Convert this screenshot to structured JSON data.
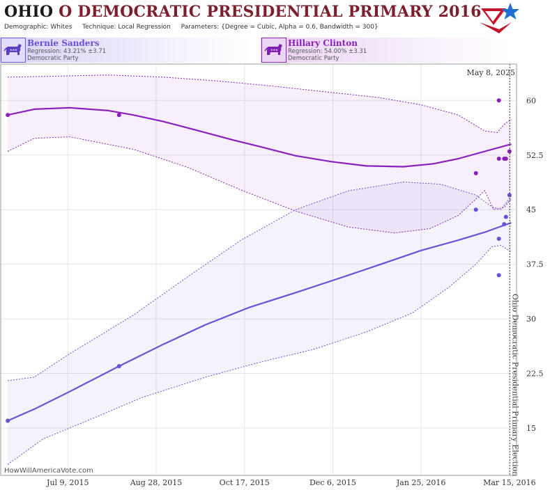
{
  "header": {
    "state": "OHIO",
    "title_rest": " O DEMOCRATIC PRESIDENTIAL PRIMARY 2016",
    "demographic": "Demographic: Whites",
    "technique": "Technique: Local Regression",
    "parameters": "Parameters: {Degree = Cubic, Alpha = 0.6, Bandwidth = 300}"
  },
  "candidates": [
    {
      "name": "Bernie Sanders",
      "regression": "Regression: 43.21% ±3.71",
      "party": "Democratic Party",
      "color": "#6a4fd8"
    },
    {
      "name": "Hillary Clinton",
      "regression": "Regression: 54.00% ±3.31",
      "party": "Democratic Party",
      "color": "#8a1fbd"
    }
  ],
  "watermark": "HowWillAmericaVote.com",
  "today_label": "May 8, 2025",
  "election_label": "Ohio Democratic Presidential Primary Election",
  "chart_data": {
    "type": "line",
    "x_ticks": [
      "Jul 9, 2015",
      "Aug 28, 2015",
      "Oct 17, 2015",
      "Dec 6, 2015",
      "Jan 25, 2016",
      "Mar 15, 2016"
    ],
    "y_ticks": [
      "60",
      "52.5",
      "45",
      "37.5",
      "30",
      "22.5",
      "15"
    ],
    "x_range": [
      "2015-06-01",
      "2016-03-19"
    ],
    "y_range": [
      8.5,
      65
    ],
    "election_date": "2016-03-15",
    "series": [
      {
        "name": "Hillary Clinton",
        "color": "#8a1fbd",
        "fit": [
          [
            "2015-06-05",
            58.0
          ],
          [
            "2015-06-20",
            58.8
          ],
          [
            "2015-07-10",
            59.0
          ],
          [
            "2015-08-01",
            58.6
          ],
          [
            "2015-08-15",
            58.0
          ],
          [
            "2015-09-01",
            57.1
          ],
          [
            "2015-09-20",
            55.9
          ],
          [
            "2015-10-10",
            54.6
          ],
          [
            "2015-10-25",
            53.7
          ],
          [
            "2015-11-15",
            52.4
          ],
          [
            "2015-12-05",
            51.6
          ],
          [
            "2015-12-25",
            51.0
          ],
          [
            "2016-01-15",
            50.9
          ],
          [
            "2016-02-01",
            51.3
          ],
          [
            "2016-02-15",
            52.0
          ],
          [
            "2016-03-01",
            53.0
          ],
          [
            "2016-03-16",
            54.0
          ]
        ],
        "upper": [
          [
            "2015-06-05",
            63.2
          ],
          [
            "2015-06-25",
            63.3
          ],
          [
            "2015-08-01",
            63.5
          ],
          [
            "2015-09-01",
            63.2
          ],
          [
            "2015-10-01",
            62.7
          ],
          [
            "2015-11-01",
            62.0
          ],
          [
            "2015-12-01",
            61.2
          ],
          [
            "2016-01-01",
            60.4
          ],
          [
            "2016-01-25",
            59.4
          ],
          [
            "2016-02-15",
            58.0
          ],
          [
            "2016-03-01",
            55.8
          ],
          [
            "2016-03-08",
            55.6
          ],
          [
            "2016-03-12",
            56.7
          ],
          [
            "2016-03-16",
            57.4
          ]
        ],
        "lower": [
          [
            "2015-06-05",
            53.0
          ],
          [
            "2015-06-20",
            54.8
          ],
          [
            "2015-07-10",
            55.0
          ],
          [
            "2015-08-15",
            53.3
          ],
          [
            "2015-09-15",
            50.8
          ],
          [
            "2015-10-15",
            47.7
          ],
          [
            "2015-11-15",
            44.8
          ],
          [
            "2015-12-15",
            42.6
          ],
          [
            "2016-01-10",
            41.8
          ],
          [
            "2016-01-30",
            42.4
          ],
          [
            "2016-02-15",
            44.2
          ],
          [
            "2016-03-01",
            47.6
          ],
          [
            "2016-03-06",
            45.0
          ],
          [
            "2016-03-12",
            45.3
          ],
          [
            "2016-03-16",
            46.5
          ]
        ],
        "polls": [
          [
            "2015-06-05",
            58
          ],
          [
            "2015-08-07",
            58
          ],
          [
            "2016-02-25",
            50
          ],
          [
            "2016-03-09",
            60
          ],
          [
            "2016-03-09",
            52
          ],
          [
            "2016-03-12",
            52
          ],
          [
            "2016-03-13",
            52
          ],
          [
            "2016-03-15",
            53
          ]
        ]
      },
      {
        "name": "Bernie Sanders",
        "color": "#6a4fd8",
        "fit": [
          [
            "2015-06-05",
            16.0
          ],
          [
            "2015-06-20",
            17.6
          ],
          [
            "2015-07-10",
            20.0
          ],
          [
            "2015-08-07",
            23.5
          ],
          [
            "2015-09-01",
            26.5
          ],
          [
            "2015-09-25",
            29.2
          ],
          [
            "2015-10-20",
            31.6
          ],
          [
            "2015-11-15",
            33.6
          ],
          [
            "2015-12-10",
            35.6
          ],
          [
            "2016-01-01",
            37.4
          ],
          [
            "2016-01-25",
            39.4
          ],
          [
            "2016-02-15",
            40.8
          ],
          [
            "2016-03-01",
            41.9
          ],
          [
            "2016-03-16",
            43.2
          ]
        ],
        "upper": [
          [
            "2015-06-05",
            21.5
          ],
          [
            "2015-06-20",
            22.0
          ],
          [
            "2015-07-10",
            25.2
          ],
          [
            "2015-08-15",
            30.5
          ],
          [
            "2015-09-15",
            35.8
          ],
          [
            "2015-10-15",
            40.8
          ],
          [
            "2015-11-15",
            45.0
          ],
          [
            "2015-12-15",
            47.6
          ],
          [
            "2016-01-15",
            48.8
          ],
          [
            "2016-02-05",
            48.5
          ],
          [
            "2016-02-25",
            47.0
          ],
          [
            "2016-03-05",
            45.4
          ],
          [
            "2016-03-10",
            45.0
          ],
          [
            "2016-03-16",
            46.8
          ]
        ],
        "lower": [
          [
            "2015-06-05",
            10.0
          ],
          [
            "2015-06-25",
            13.5
          ],
          [
            "2015-07-20",
            16.0
          ],
          [
            "2015-08-20",
            19.2
          ],
          [
            "2015-09-25",
            22.0
          ],
          [
            "2015-10-25",
            24.0
          ],
          [
            "2015-11-25",
            25.8
          ],
          [
            "2015-12-25",
            28.2
          ],
          [
            "2016-01-20",
            30.8
          ],
          [
            "2016-02-10",
            34.4
          ],
          [
            "2016-02-25",
            37.5
          ],
          [
            "2016-03-05",
            39.9
          ],
          [
            "2016-03-10",
            40.1
          ],
          [
            "2016-03-16",
            39.2
          ]
        ],
        "polls": [
          [
            "2015-06-05",
            16
          ],
          [
            "2015-08-07",
            23.5
          ],
          [
            "2016-02-25",
            45
          ],
          [
            "2016-03-09",
            41
          ],
          [
            "2016-03-09",
            36
          ],
          [
            "2016-03-12",
            43
          ],
          [
            "2016-03-13",
            44
          ],
          [
            "2016-03-15",
            47
          ]
        ]
      }
    ]
  }
}
